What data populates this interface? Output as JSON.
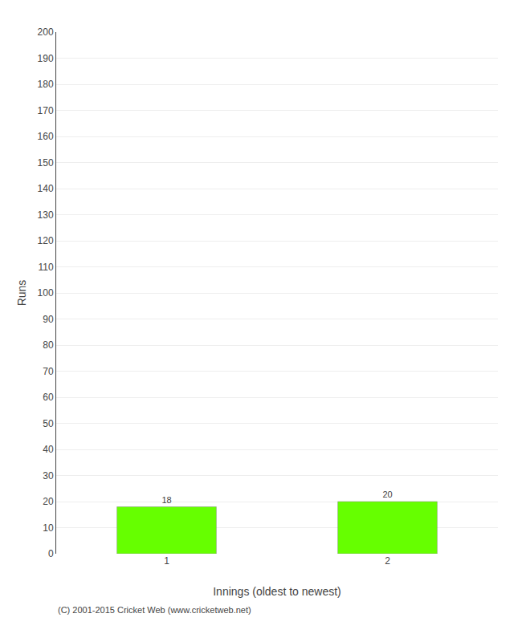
{
  "chart_data": {
    "type": "bar",
    "categories": [
      "1",
      "2"
    ],
    "values": [
      18,
      20
    ],
    "color": "#66ff00",
    "xlabel": "Innings (oldest to newest)",
    "ylabel": "Runs",
    "ylim": [
      0,
      200
    ],
    "yticks": [
      0,
      10,
      20,
      30,
      40,
      50,
      60,
      70,
      80,
      90,
      100,
      110,
      120,
      130,
      140,
      150,
      160,
      170,
      180,
      190,
      200
    ],
    "grid": true,
    "data_labels": true,
    "annotations": [
      "(C) 2001-2015 Cricket Web (www.cricketweb.net)"
    ]
  }
}
